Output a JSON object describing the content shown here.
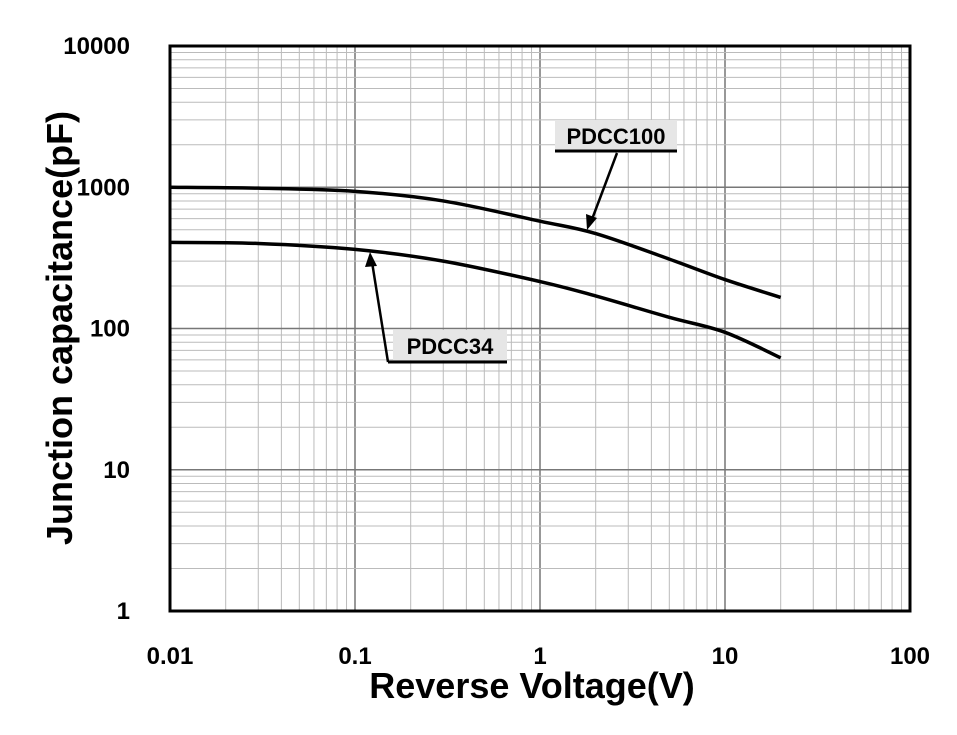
{
  "chart_data": {
    "type": "line",
    "title": "",
    "xlabel": "Reverse Voltage(V)",
    "ylabel": "Junction capacitance(pF)",
    "xscale": "log",
    "yscale": "log",
    "xlim": [
      0.01,
      100
    ],
    "ylim": [
      1,
      10000
    ],
    "xticks": [
      "0.01",
      "0.1",
      "1",
      "10",
      "100"
    ],
    "yticks": [
      "1",
      "10",
      "100",
      "1000",
      "10000"
    ],
    "grid": true,
    "series": [
      {
        "name": "PDCC100",
        "x": [
          0.01,
          0.03,
          0.1,
          0.3,
          1,
          2,
          5,
          10,
          20
        ],
        "y": [
          1000,
          985,
          935,
          800,
          575,
          470,
          310,
          222,
          166
        ]
      },
      {
        "name": "PDCC34",
        "x": [
          0.01,
          0.03,
          0.1,
          0.3,
          1,
          2,
          5,
          10,
          20
        ],
        "y": [
          407,
          400,
          363,
          300,
          215,
          170,
          120,
          94,
          62
        ]
      }
    ],
    "annotations": [
      "PDCC100",
      "PDCC34"
    ]
  }
}
